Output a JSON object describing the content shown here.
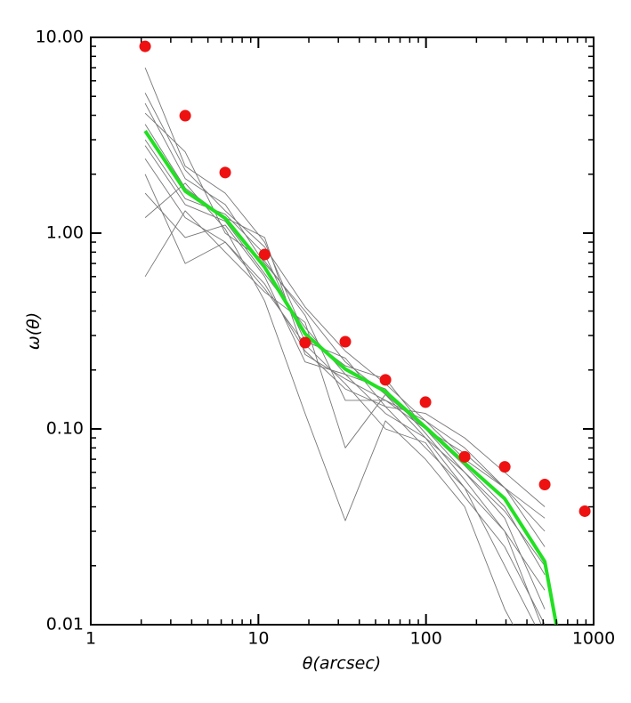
{
  "chart_data": {
    "type": "line",
    "xlabel": "θ(arcsec)",
    "ylabel": "ω(θ)",
    "xlog": true,
    "ylog": true,
    "xlim": [
      1,
      1000
    ],
    "ylim": [
      0.01,
      10
    ],
    "xticks": [
      1,
      10,
      100,
      1000
    ],
    "yticks": [
      0.01,
      {
        "value": 0.1,
        "label": "0.10"
      },
      {
        "value": 1,
        "label": "1.00"
      },
      {
        "value": 10,
        "label": "10.00"
      }
    ],
    "xminorticks": [
      2,
      3,
      4,
      5,
      6,
      7,
      8,
      9,
      20,
      30,
      40,
      50,
      60,
      70,
      80,
      90,
      200,
      300,
      400,
      500,
      600,
      700,
      800,
      900
    ],
    "yminorticks": [
      0.02,
      0.03,
      0.04,
      0.05,
      0.06,
      0.07,
      0.08,
      0.09,
      0.2,
      0.3,
      0.4,
      0.5,
      0.6,
      0.7,
      0.8,
      0.9,
      2,
      3,
      4,
      5,
      6,
      7,
      8,
      9
    ],
    "series": [
      {
        "color": "#777777",
        "x": [
          2.11,
          3.66,
          6.34,
          10.9,
          19.0,
          33.0,
          57.3,
          99.3,
          170,
          295,
          511
        ],
        "values": [
          5.2,
          2.1,
          1.3,
          0.85,
          0.42,
          0.25,
          0.17,
          0.11,
          0.08,
          0.05,
          0.03
        ]
      },
      {
        "color": "#777777",
        "x": [
          2.11,
          3.66,
          6.34,
          10.9,
          19.0,
          33.0,
          57.3,
          99.3,
          170,
          295,
          511
        ],
        "values": [
          2.4,
          1.2,
          0.9,
          0.55,
          0.25,
          0.16,
          0.13,
          0.08,
          0.05,
          0.03,
          0.015
        ]
      },
      {
        "color": "#777777",
        "x": [
          2.11,
          3.66,
          6.34,
          10.9,
          19.0,
          33.0,
          57.3,
          99.3,
          170,
          295,
          511
        ],
        "values": [
          1.6,
          0.95,
          1.1,
          0.6,
          0.22,
          0.19,
          0.12,
          0.09,
          0.06,
          0.035,
          0.012
        ]
      },
      {
        "color": "#777777",
        "x": [
          2.11,
          3.66,
          6.34,
          10.9,
          19.0,
          33.0,
          57.3,
          99.3,
          170,
          295,
          511
        ],
        "values": [
          4.1,
          2.6,
          1.0,
          0.72,
          0.38,
          0.14,
          0.14,
          0.11,
          0.07,
          0.05,
          0.025
        ]
      },
      {
        "color": "#777777",
        "x": [
          2.11,
          3.66,
          6.34,
          10.9,
          19.0,
          33.0,
          57.3,
          99.3,
          170,
          295,
          511
        ],
        "values": [
          7.0,
          2.2,
          1.6,
          0.9,
          0.3,
          0.21,
          0.18,
          0.1,
          0.065,
          0.04,
          0.018
        ]
      },
      {
        "color": "#777777",
        "x": [
          2.11,
          3.66,
          6.34,
          10.9,
          19.0,
          33.0,
          57.3,
          99.3,
          170,
          295,
          511
        ],
        "values": [
          0.6,
          1.3,
          0.8,
          0.5,
          0.35,
          0.08,
          0.15,
          0.09,
          0.05,
          0.02,
          0.008
        ]
      },
      {
        "color": "#777777",
        "x": [
          2.11,
          3.66,
          6.34,
          10.9,
          19.0,
          33.0,
          57.3,
          99.3,
          170,
          295,
          511
        ],
        "values": [
          3.0,
          1.5,
          1.25,
          0.78,
          0.28,
          0.23,
          0.13,
          0.12,
          0.09,
          0.06,
          0.04
        ]
      },
      {
        "color": "#777777",
        "x": [
          2.11,
          3.66,
          6.34,
          10.9,
          19.0,
          33.0,
          57.3,
          99.3,
          170,
          295,
          511
        ],
        "values": [
          1.2,
          1.8,
          1.05,
          0.45,
          0.12,
          0.034,
          0.11,
          0.07,
          0.04,
          0.012,
          0.005
        ]
      },
      {
        "color": "#777777",
        "x": [
          2.11,
          3.66,
          6.34,
          10.9,
          19.0,
          33.0,
          57.3,
          99.3,
          170,
          295,
          511
        ],
        "values": [
          2.8,
          1.4,
          1.15,
          0.62,
          0.33,
          0.19,
          0.16,
          0.095,
          0.055,
          0.03,
          0.009
        ]
      },
      {
        "color": "#777777",
        "x": [
          2.11,
          3.66,
          6.34,
          10.9,
          19.0,
          33.0,
          57.3,
          99.3,
          170,
          295,
          511
        ],
        "values": [
          4.6,
          1.9,
          1.4,
          0.7,
          0.4,
          0.22,
          0.15,
          0.1,
          0.075,
          0.05,
          0.035
        ]
      },
      {
        "color": "#777777",
        "x": [
          2.11,
          3.66,
          6.34,
          10.9,
          19.0,
          33.0,
          57.3,
          99.3,
          170,
          295,
          511
        ],
        "values": [
          2.0,
          0.7,
          0.9,
          0.52,
          0.27,
          0.17,
          0.1,
          0.085,
          0.045,
          0.025,
          0.01
        ]
      },
      {
        "color": "#777777",
        "x": [
          2.11,
          3.66,
          6.34,
          10.9,
          19.0,
          33.0,
          57.3,
          99.3,
          170,
          295,
          511
        ],
        "values": [
          3.6,
          1.7,
          1.2,
          0.95,
          0.24,
          0.18,
          0.14,
          0.1,
          0.06,
          0.038,
          0.02
        ]
      },
      {
        "color": "#22e022",
        "width": 4,
        "x": [
          2.11,
          3.66,
          6.34,
          10.9,
          19.0,
          33.0,
          57.3,
          99.3,
          170,
          295,
          511,
          599
        ],
        "values": [
          3.33,
          1.64,
          1.19,
          0.67,
          0.306,
          0.202,
          0.155,
          0.102,
          0.067,
          0.044,
          0.021,
          0.01
        ]
      },
      {
        "color": "#ee1111",
        "mode": "markers",
        "x": [
          2.11,
          3.66,
          6.34,
          10.9,
          19.0,
          33.0,
          57.3,
          99.3,
          170,
          295,
          511,
          886
        ],
        "values": [
          9.0,
          3.98,
          2.04,
          0.778,
          0.276,
          0.279,
          0.178,
          0.137,
          0.072,
          0.064,
          0.052,
          0.038
        ]
      }
    ]
  }
}
